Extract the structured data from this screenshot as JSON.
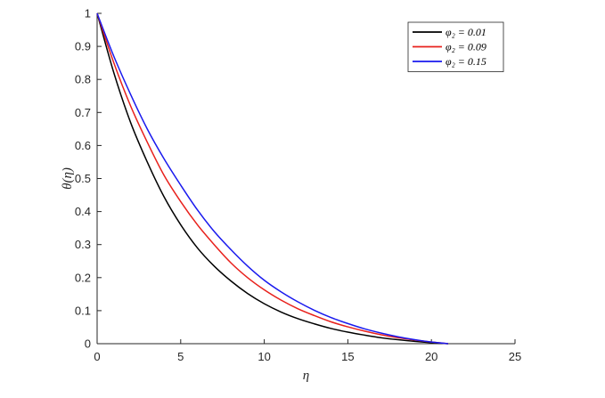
{
  "chart_data": {
    "type": "line",
    "xlabel": "η",
    "ylabel": "θ(η)",
    "xlim": [
      0,
      25
    ],
    "ylim": [
      0,
      1
    ],
    "xticks": [
      0,
      5,
      10,
      15,
      20,
      25
    ],
    "yticks": [
      0,
      0.1,
      0.2,
      0.3,
      0.4,
      0.5,
      0.6,
      0.7,
      0.8,
      0.9,
      1
    ],
    "grid": false,
    "legend_position": "top-right",
    "x": [
      0,
      1,
      2,
      3,
      4,
      5,
      6,
      7,
      8,
      9,
      10,
      11,
      12,
      13,
      14,
      15,
      16,
      17,
      18,
      19,
      20,
      21
    ],
    "series": [
      {
        "name": "φ₂ = 0.01",
        "color": "#000000",
        "values": [
          1.0,
          0.82,
          0.67,
          0.55,
          0.445,
          0.36,
          0.29,
          0.235,
          0.19,
          0.152,
          0.121,
          0.096,
          0.076,
          0.06,
          0.046,
          0.035,
          0.026,
          0.018,
          0.012,
          0.007,
          0.003,
          0.0
        ]
      },
      {
        "name": "φ₂ = 0.09",
        "color": "#e8211c",
        "values": [
          1.0,
          0.85,
          0.72,
          0.61,
          0.51,
          0.43,
          0.36,
          0.3,
          0.245,
          0.2,
          0.163,
          0.132,
          0.106,
          0.085,
          0.066,
          0.051,
          0.038,
          0.027,
          0.018,
          0.011,
          0.005,
          0.0
        ]
      },
      {
        "name": "φ₂ = 0.15",
        "color": "#1a1aee",
        "values": [
          1.0,
          0.87,
          0.755,
          0.65,
          0.56,
          0.48,
          0.405,
          0.34,
          0.285,
          0.235,
          0.192,
          0.157,
          0.127,
          0.101,
          0.079,
          0.061,
          0.045,
          0.032,
          0.021,
          0.012,
          0.005,
          0.0
        ]
      }
    ]
  }
}
